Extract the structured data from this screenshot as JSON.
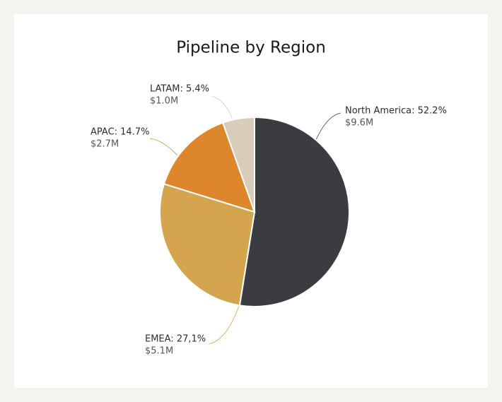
{
  "chart_data": {
    "type": "pie",
    "title": "Pipeline by Region",
    "labels": [
      "North America: 52.2%",
      "EMEA: 27,1%",
      "APAC: 14.7%",
      "LATAM: 5.4%"
    ],
    "values": [
      52.2,
      27.1,
      14.7,
      5.4
    ],
    "amounts": [
      9.6,
      5.1,
      2.7,
      1.0
    ],
    "amount_labels": [
      "$9.6M",
      "$5.1M",
      "$2.7M",
      "$1.0M"
    ],
    "colors": [
      "#3a3c42",
      "#d4a54e",
      "#de862c",
      "#d8cdb8"
    ]
  }
}
